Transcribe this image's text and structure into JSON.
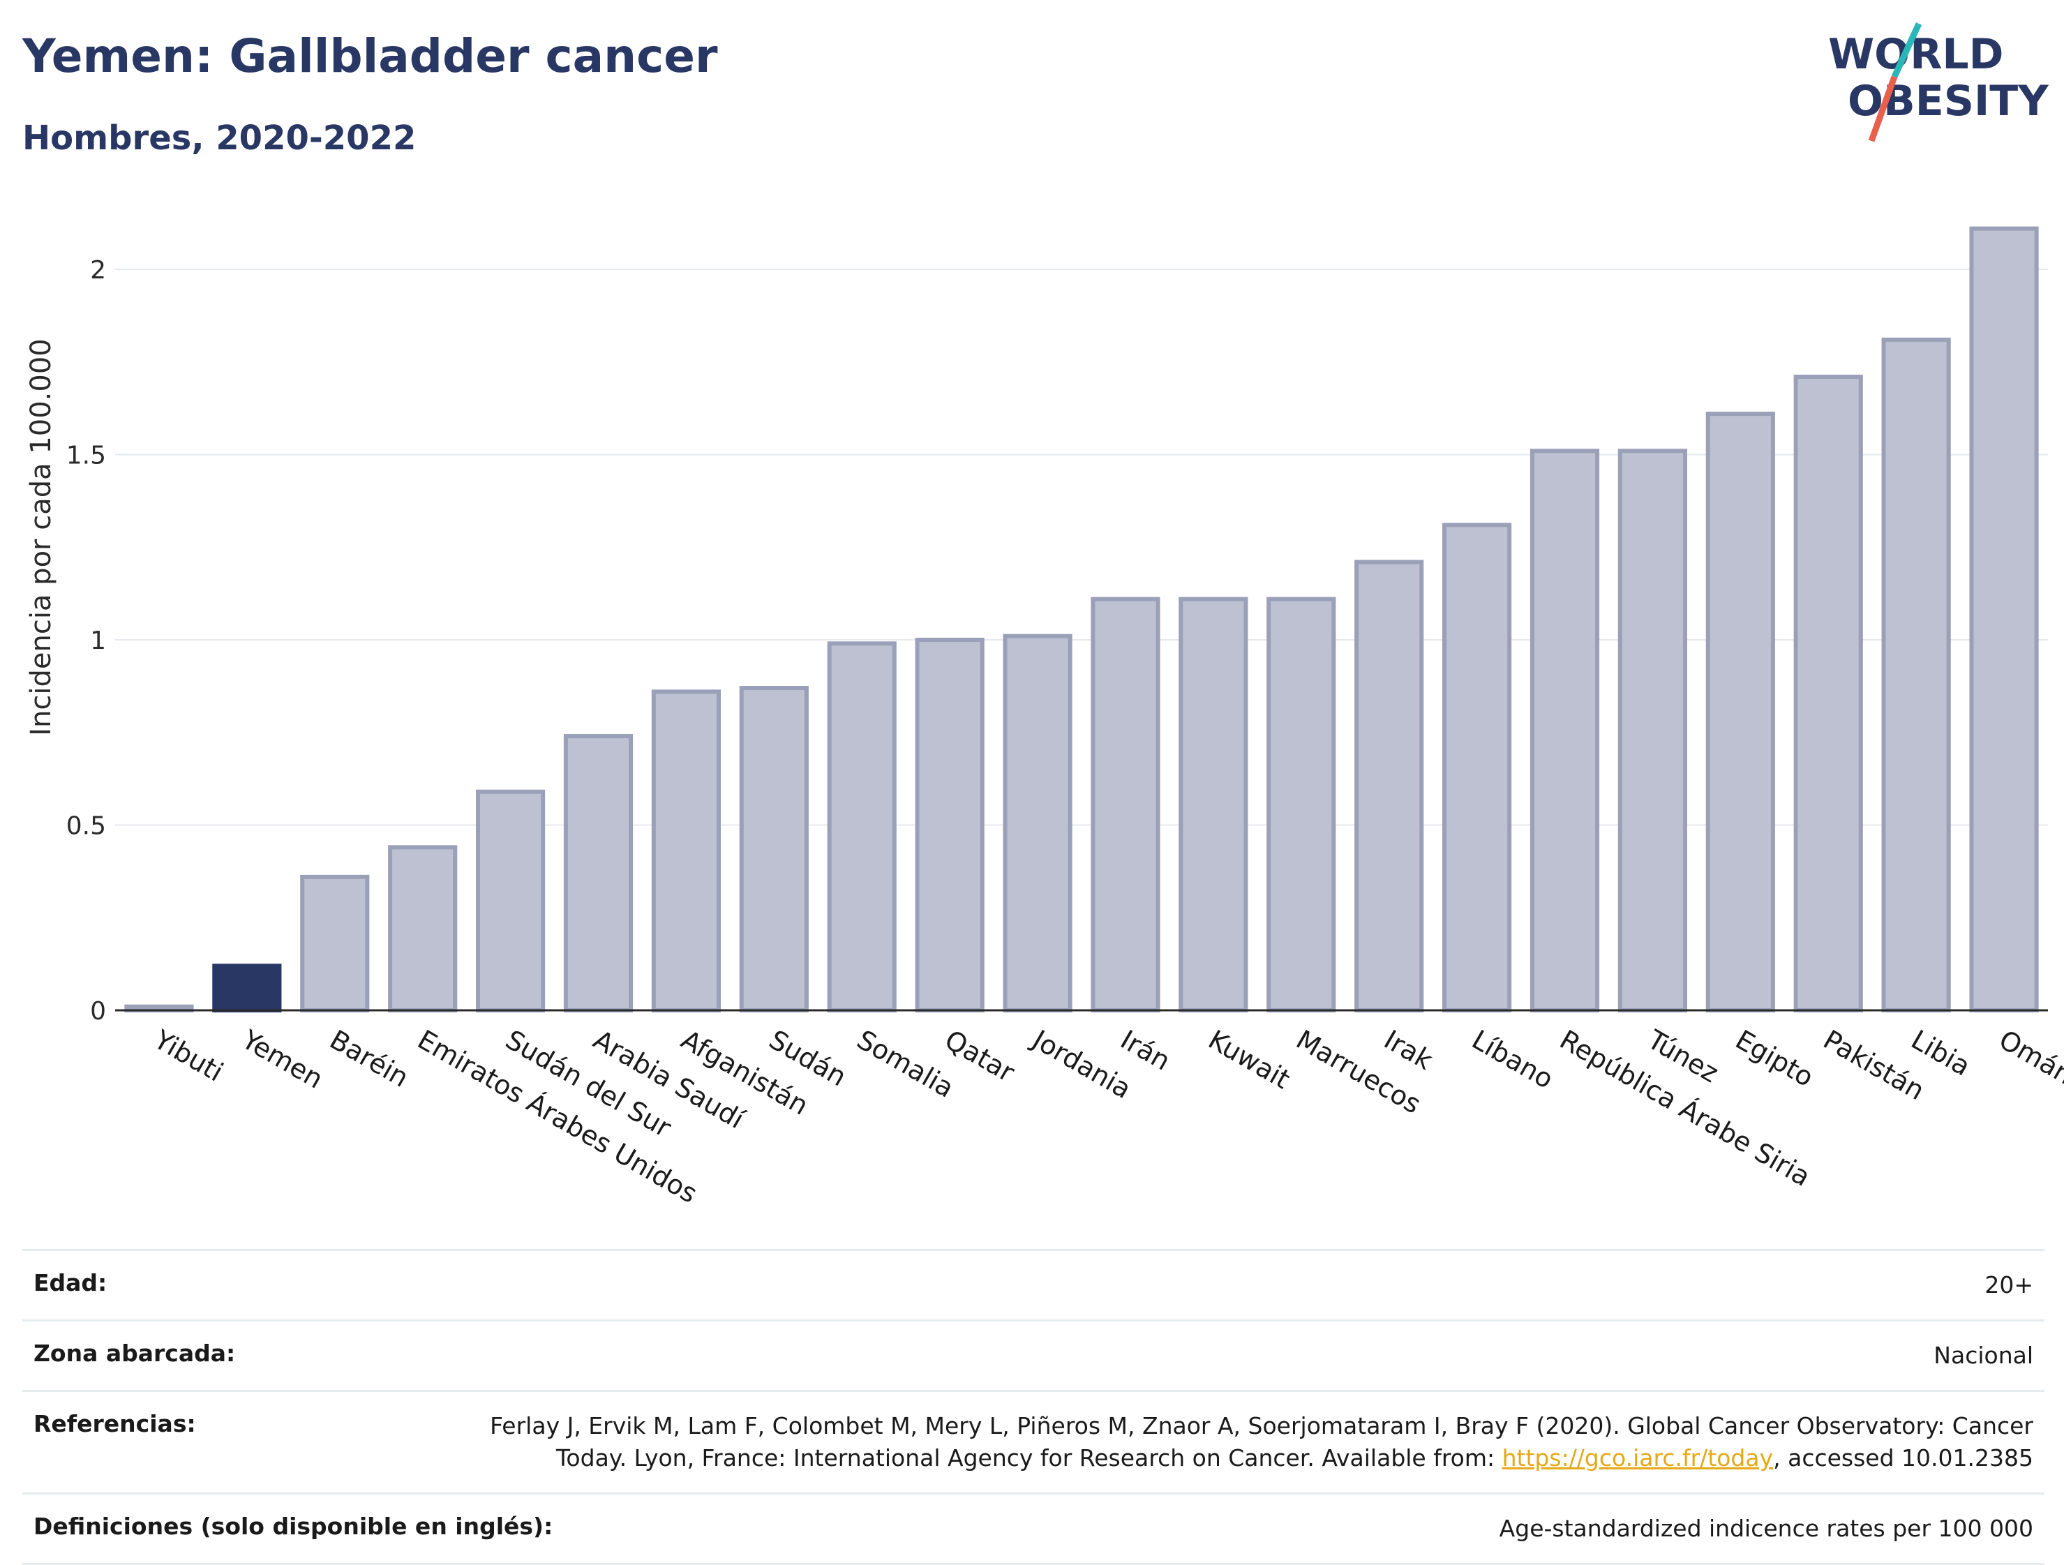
{
  "header": {
    "title": "Yemen: Gallbladder cancer",
    "subtitle": "Hombres, 2020-2022"
  },
  "logo": {
    "line1": "WORLD",
    "line2": "OBESITY",
    "colors": {
      "text": "#283764",
      "slash_teal": "#2ab7b7",
      "slash_red": "#e8604c"
    }
  },
  "colors": {
    "highlight_bar": "#283764",
    "other_bar_fill": "#bdc1d1",
    "other_bar_border": "#9aa0b8",
    "grid": "#e6e9ef",
    "axis": "#2a2a2a"
  },
  "chart_data": {
    "type": "bar",
    "ylabel": "Incidencia por cada 100.000",
    "ylim": [
      0,
      2.2
    ],
    "yticks": [
      0,
      0.5,
      1,
      1.5,
      2
    ],
    "ytick_labels": [
      "0",
      "0.5",
      "1",
      "1.5",
      "2"
    ],
    "grid": true,
    "highlight": "Yemen",
    "categories": [
      "Yibuti",
      "Yemen",
      "Baréin",
      "Emiratos Árabes Unidos",
      "Sudán del Sur",
      "Arabia Saudí",
      "Afganistán",
      "Sudán",
      "Somalia",
      "Qatar",
      "Jordania",
      "Irán",
      "Kuwait",
      "Marruecos",
      "Irak",
      "Líbano",
      "República Árabe Siria",
      "Túnez",
      "Egipto",
      "Pakistán",
      "Libia",
      "Omán"
    ],
    "values": [
      0.01,
      0.12,
      0.36,
      0.44,
      0.59,
      0.74,
      0.86,
      0.87,
      0.99,
      1.0,
      1.01,
      1.11,
      1.11,
      1.11,
      1.21,
      1.31,
      1.51,
      1.51,
      1.61,
      1.71,
      1.81,
      2.11
    ]
  },
  "meta": [
    {
      "label": "Edad:",
      "value": "20+"
    },
    {
      "label": "Zona abarcada:",
      "value": "Nacional"
    },
    {
      "label": "Referencias:",
      "ref_line1": "Ferlay J, Ervik M, Lam F, Colombet M, Mery L, Piñeros M, Znaor A, Soerjomataram I, Bray F (2020). Global Cancer Observatory: Cancer",
      "ref_line2_pre": "Today. Lyon, France: International Agency for Research on Cancer. Available from: ",
      "ref_link": "https://gco.iarc.fr/today",
      "ref_line2_post": ", accessed 10.01.2385"
    },
    {
      "label": "Definiciones (solo disponible en inglés):",
      "value": "Age-standardized indicence rates per 100 000"
    }
  ]
}
